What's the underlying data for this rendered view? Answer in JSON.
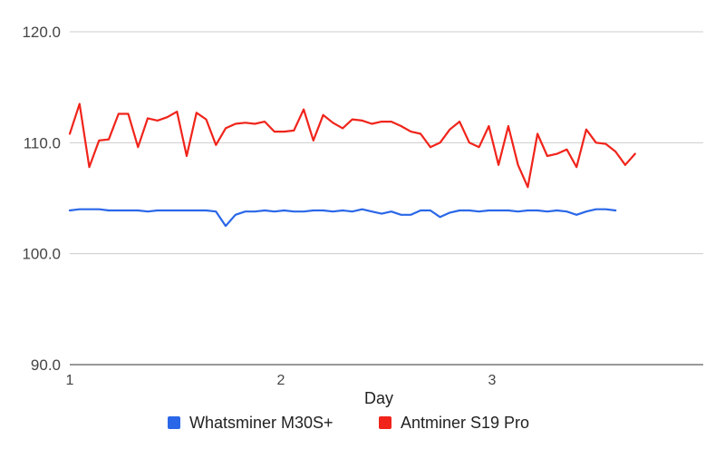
{
  "chart_data": {
    "type": "line",
    "title": "",
    "xlabel": "Day",
    "ylabel": "",
    "xlim": [
      1,
      4
    ],
    "ylim": [
      90,
      120
    ],
    "grid": true,
    "legend_position": "bottom",
    "x_ticks": [
      {
        "value": 1,
        "label": "1"
      },
      {
        "value": 2,
        "label": "2"
      },
      {
        "value": 3,
        "label": "3"
      }
    ],
    "y_ticks": [
      {
        "value": 90,
        "label": "90.0"
      },
      {
        "value": 100,
        "label": "100.0"
      },
      {
        "value": 110,
        "label": "110.0"
      },
      {
        "value": 120,
        "label": "120.0"
      }
    ],
    "x_step": 0.04615,
    "series": [
      {
        "name": "Whatsminer M30S+",
        "color": "#2a67e8",
        "values": [
          103.9,
          104.0,
          104.0,
          104.0,
          103.9,
          103.9,
          103.9,
          103.9,
          103.8,
          103.9,
          103.9,
          103.9,
          103.9,
          103.9,
          103.9,
          103.8,
          102.5,
          103.5,
          103.8,
          103.8,
          103.9,
          103.8,
          103.9,
          103.8,
          103.8,
          103.9,
          103.9,
          103.8,
          103.9,
          103.8,
          104.0,
          103.8,
          103.6,
          103.8,
          103.5,
          103.5,
          103.9,
          103.9,
          103.3,
          103.7,
          103.9,
          103.9,
          103.8,
          103.9,
          103.9,
          103.9,
          103.8,
          103.9,
          103.9,
          103.8,
          103.9,
          103.8,
          103.5,
          103.8,
          104.0,
          104.0,
          103.9
        ]
      },
      {
        "name": "Antminer S19 Pro",
        "color": "#f0241b",
        "values": [
          110.8,
          113.5,
          107.8,
          110.2,
          110.3,
          112.6,
          112.6,
          109.6,
          112.2,
          112.0,
          112.3,
          112.8,
          108.8,
          112.7,
          112.1,
          109.8,
          111.3,
          111.7,
          111.8,
          111.7,
          111.9,
          111.0,
          111.0,
          111.1,
          113.0,
          110.2,
          112.5,
          111.8,
          111.3,
          112.1,
          112.0,
          111.7,
          111.9,
          111.9,
          111.5,
          111.0,
          110.8,
          109.6,
          110.0,
          111.2,
          111.9,
          110.0,
          109.6,
          111.5,
          108.0,
          111.5,
          108.0,
          106.0,
          110.8,
          108.8,
          109.0,
          109.4,
          107.8,
          111.2,
          110.0,
          109.9,
          109.2,
          108.0,
          109.0
        ]
      }
    ]
  }
}
